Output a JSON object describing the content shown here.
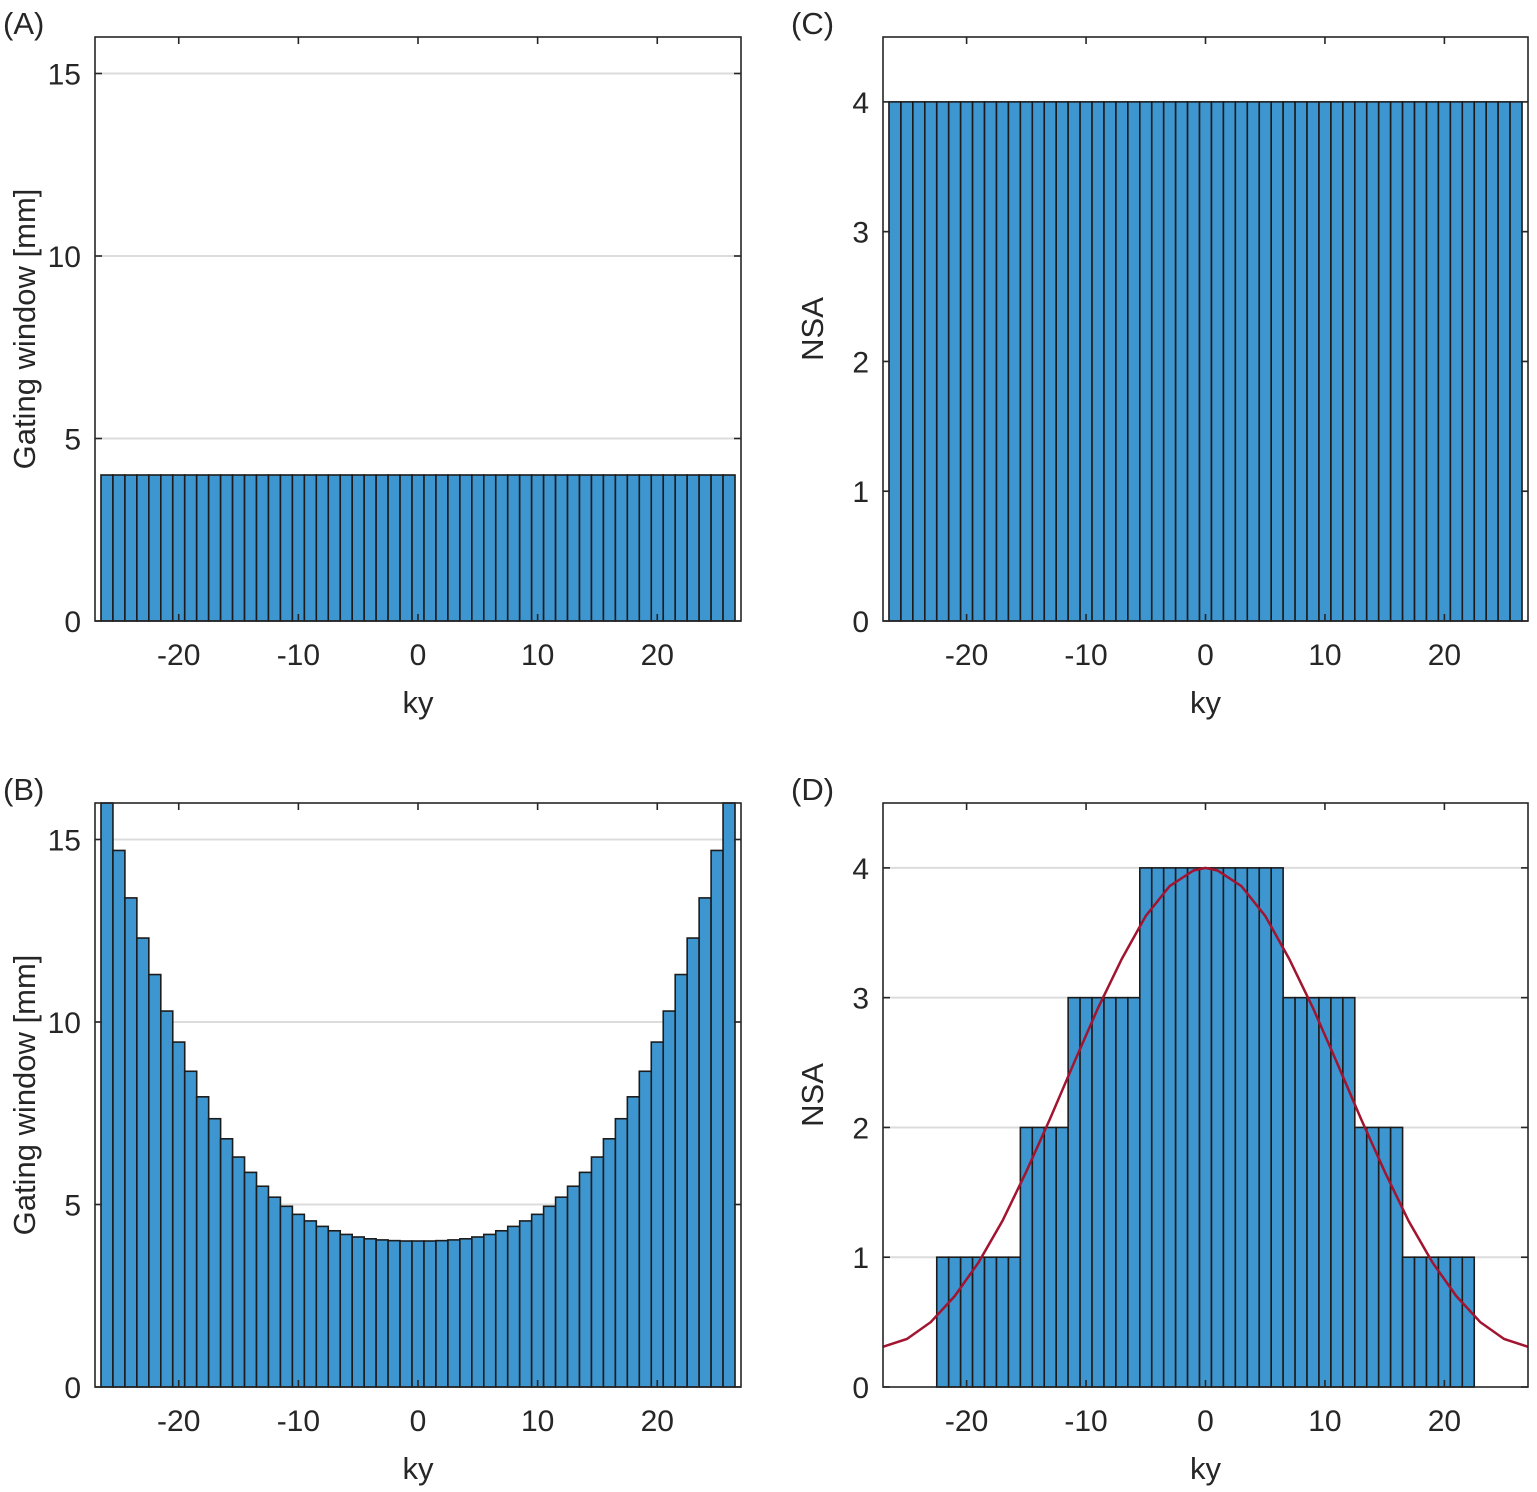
{
  "chart_data": [
    {
      "panel_label": "(A)",
      "type": "bar",
      "xlabel": "ky",
      "ylabel": "Gating window [mm]",
      "xlim": [
        -27,
        27
      ],
      "ylim": [
        0,
        16
      ],
      "xticks": [
        -20,
        -10,
        0,
        10,
        20
      ],
      "yticks": [
        0,
        5,
        10,
        15
      ],
      "grid": "horizontal",
      "x": [
        -26,
        -25,
        -24,
        -23,
        -22,
        -21,
        -20,
        -19,
        -18,
        -17,
        -16,
        -15,
        -14,
        -13,
        -12,
        -11,
        -10,
        -9,
        -8,
        -7,
        -6,
        -5,
        -4,
        -3,
        -2,
        -1,
        0,
        1,
        2,
        3,
        4,
        5,
        6,
        7,
        8,
        9,
        10,
        11,
        12,
        13,
        14,
        15,
        16,
        17,
        18,
        19,
        20,
        21,
        22,
        23,
        24,
        25,
        26
      ],
      "values": [
        4,
        4,
        4,
        4,
        4,
        4,
        4,
        4,
        4,
        4,
        4,
        4,
        4,
        4,
        4,
        4,
        4,
        4,
        4,
        4,
        4,
        4,
        4,
        4,
        4,
        4,
        4,
        4,
        4,
        4,
        4,
        4,
        4,
        4,
        4,
        4,
        4,
        4,
        4,
        4,
        4,
        4,
        4,
        4,
        4,
        4,
        4,
        4,
        4,
        4,
        4,
        4,
        4
      ],
      "colors": {
        "bar": "#3d96cf",
        "edge": "#1c1c1c"
      }
    },
    {
      "panel_label": "(B)",
      "type": "bar",
      "xlabel": "ky",
      "ylabel": "Gating window [mm]",
      "xlim": [
        -27,
        27
      ],
      "ylim": [
        0,
        16
      ],
      "xticks": [
        -20,
        -10,
        0,
        10,
        20
      ],
      "yticks": [
        0,
        5,
        10,
        15
      ],
      "grid": "horizontal",
      "x": [
        -26,
        -25,
        -24,
        -23,
        -22,
        -21,
        -20,
        -19,
        -18,
        -17,
        -16,
        -15,
        -14,
        -13,
        -12,
        -11,
        -10,
        -9,
        -8,
        -7,
        -6,
        -5,
        -4,
        -3,
        -2,
        -1,
        0,
        1,
        2,
        3,
        4,
        5,
        6,
        7,
        8,
        9,
        10,
        11,
        12,
        13,
        14,
        15,
        16,
        17,
        18,
        19,
        20,
        21,
        22,
        23,
        24,
        25,
        26
      ],
      "values": [
        16,
        14.7,
        13.4,
        12.3,
        11.3,
        10.3,
        9.45,
        8.65,
        7.95,
        7.35,
        6.8,
        6.3,
        5.88,
        5.5,
        5.2,
        4.95,
        4.73,
        4.55,
        4.4,
        4.28,
        4.18,
        4.11,
        4.06,
        4.03,
        4.01,
        4.0,
        4.0,
        4.0,
        4.01,
        4.03,
        4.06,
        4.11,
        4.18,
        4.28,
        4.4,
        4.55,
        4.73,
        4.95,
        5.2,
        5.5,
        5.88,
        6.3,
        6.8,
        7.35,
        7.95,
        8.65,
        9.45,
        10.3,
        11.3,
        12.3,
        13.4,
        14.7,
        16
      ],
      "colors": {
        "bar": "#3d96cf",
        "edge": "#1c1c1c"
      }
    },
    {
      "panel_label": "(C)",
      "type": "bar",
      "xlabel": "ky",
      "ylabel": "NSA",
      "xlim": [
        -27,
        27
      ],
      "ylim": [
        0,
        4.5
      ],
      "xticks": [
        -20,
        -10,
        0,
        10,
        20
      ],
      "yticks": [
        0,
        1,
        2,
        3,
        4
      ],
      "grid": "horizontal",
      "x": [
        -26,
        -25,
        -24,
        -23,
        -22,
        -21,
        -20,
        -19,
        -18,
        -17,
        -16,
        -15,
        -14,
        -13,
        -12,
        -11,
        -10,
        -9,
        -8,
        -7,
        -6,
        -5,
        -4,
        -3,
        -2,
        -1,
        0,
        1,
        2,
        3,
        4,
        5,
        6,
        7,
        8,
        9,
        10,
        11,
        12,
        13,
        14,
        15,
        16,
        17,
        18,
        19,
        20,
        21,
        22,
        23,
        24,
        25,
        26
      ],
      "values": [
        4,
        4,
        4,
        4,
        4,
        4,
        4,
        4,
        4,
        4,
        4,
        4,
        4,
        4,
        4,
        4,
        4,
        4,
        4,
        4,
        4,
        4,
        4,
        4,
        4,
        4,
        4,
        4,
        4,
        4,
        4,
        4,
        4,
        4,
        4,
        4,
        4,
        4,
        4,
        4,
        4,
        4,
        4,
        4,
        4,
        4,
        4,
        4,
        4,
        4,
        4,
        4,
        4
      ],
      "colors": {
        "bar": "#3d96cf",
        "edge": "#1c1c1c"
      }
    },
    {
      "panel_label": "(D)",
      "type": "bar",
      "xlabel": "ky",
      "ylabel": "NSA",
      "xlim": [
        -27,
        27
      ],
      "ylim": [
        0,
        4.5
      ],
      "xticks": [
        -20,
        -10,
        0,
        10,
        20
      ],
      "yticks": [
        0,
        1,
        2,
        3,
        4
      ],
      "grid": "horizontal",
      "x": [
        -22,
        -21,
        -20,
        -19,
        -18,
        -17,
        -16,
        -15,
        -14,
        -13,
        -12,
        -11,
        -10,
        -9,
        -8,
        -7,
        -6,
        -5,
        -4,
        -3,
        -2,
        -1,
        0,
        1,
        2,
        3,
        4,
        5,
        6,
        7,
        8,
        9,
        10,
        11,
        12,
        13,
        14,
        15,
        16,
        17,
        18,
        19,
        20,
        21,
        22
      ],
      "values": [
        1,
        1,
        1,
        1,
        1,
        1,
        1,
        2,
        2,
        2,
        2,
        3,
        3,
        3,
        3,
        3,
        3,
        4,
        4,
        4,
        4,
        4,
        4,
        4,
        4,
        4,
        4,
        4,
        4,
        3,
        3,
        3,
        3,
        3,
        3,
        2,
        2,
        2,
        2,
        1,
        1,
        1,
        1,
        1,
        1
      ],
      "curve": {
        "x": [
          -27,
          -25,
          -23,
          -21,
          -19,
          -17,
          -15,
          -13,
          -11,
          -9,
          -7,
          -5,
          -3,
          -1,
          0,
          1,
          3,
          5,
          7,
          9,
          11,
          13,
          15,
          17,
          19,
          21,
          23,
          25,
          27
        ],
        "y": [
          0.31,
          0.37,
          0.5,
          0.7,
          0.96,
          1.28,
          1.66,
          2.07,
          2.5,
          2.92,
          3.3,
          3.63,
          3.86,
          3.98,
          4.0,
          3.98,
          3.86,
          3.63,
          3.3,
          2.92,
          2.5,
          2.07,
          1.66,
          1.28,
          0.96,
          0.7,
          0.5,
          0.37,
          0.31
        ]
      },
      "colors": {
        "bar": "#3d96cf",
        "edge": "#1c1c1c",
        "curve": "#a2142f"
      }
    }
  ]
}
